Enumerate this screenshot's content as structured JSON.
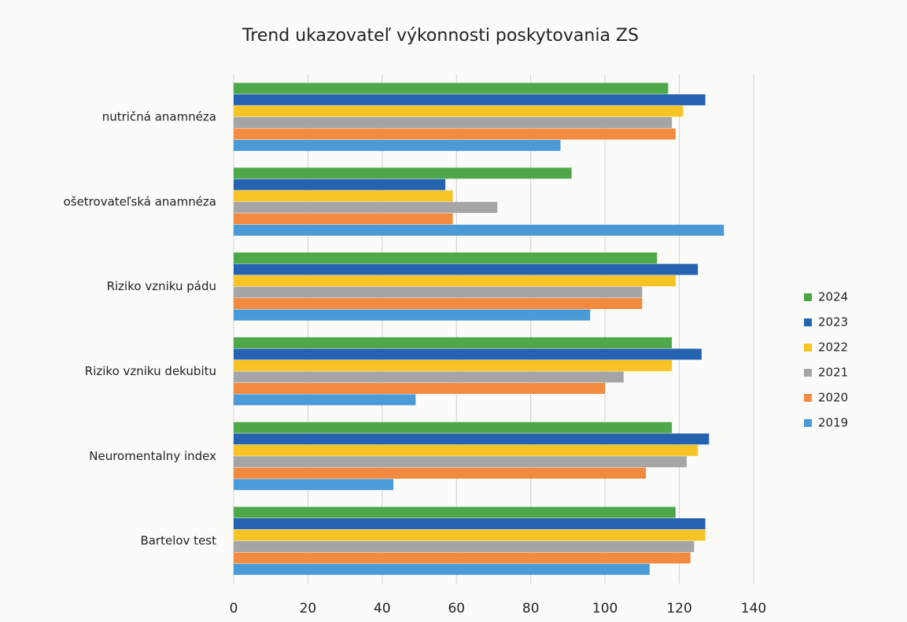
{
  "chart_data": {
    "type": "hbar",
    "title": "Trend ukazovateľ výkonnosti poskytovania ZS",
    "categories": [
      "nutričná anamnéza",
      "ošetrovateľská anamnéza",
      "Riziko vzniku pádu",
      "Riziko vzniku dekubitu",
      "Neuromentalny index",
      "Bartelov test"
    ],
    "series": [
      {
        "name": "2024",
        "color": "#4ea84a",
        "values": [
          117,
          91,
          114,
          118,
          118,
          119
        ]
      },
      {
        "name": "2023",
        "color": "#2563b0",
        "values": [
          127,
          57,
          125,
          126,
          128,
          127
        ]
      },
      {
        "name": "2022",
        "color": "#f7c325",
        "values": [
          121,
          59,
          119,
          118,
          125,
          127
        ]
      },
      {
        "name": "2021",
        "color": "#a5a5a5",
        "values": [
          118,
          71,
          110,
          105,
          122,
          124
        ]
      },
      {
        "name": "2020",
        "color": "#f28a3f",
        "values": [
          119,
          59,
          110,
          100,
          111,
          123
        ]
      },
      {
        "name": "2019",
        "color": "#4a9ad8",
        "values": [
          88,
          132,
          96,
          49,
          43,
          112
        ]
      }
    ],
    "xlim": [
      0,
      140
    ],
    "xticks": [
      0,
      20,
      40,
      60,
      80,
      100,
      120,
      140
    ],
    "grid": true,
    "legend": "right"
  }
}
